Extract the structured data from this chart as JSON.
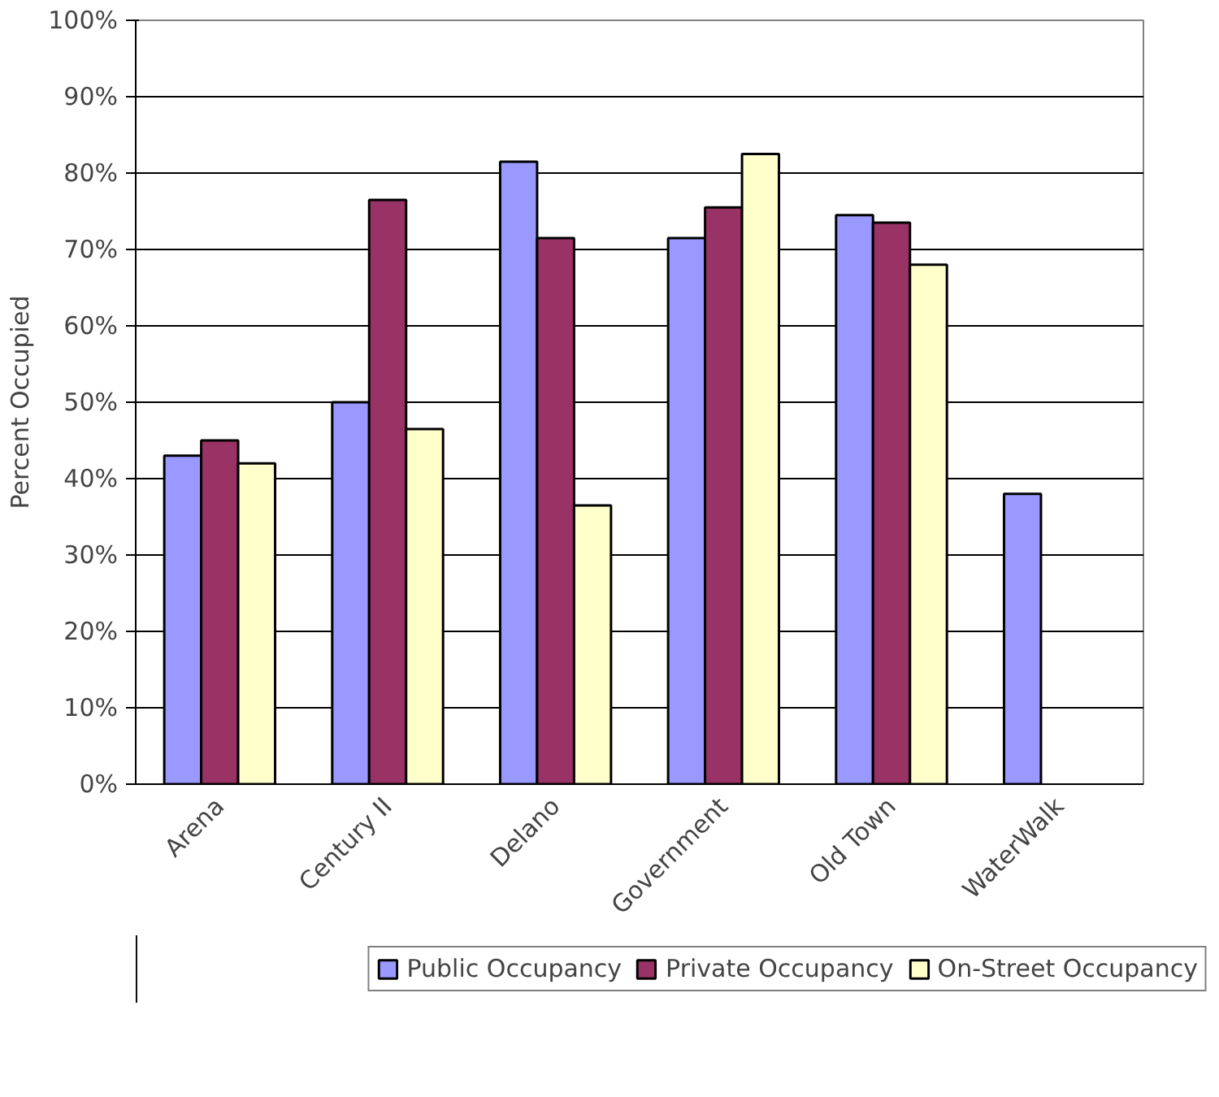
{
  "chart_data": {
    "type": "bar",
    "ylabel": "Percent Occupied",
    "categories": [
      "Arena",
      "Century II",
      "Delano",
      "Government",
      "Old Town",
      "WaterWalk"
    ],
    "series": [
      {
        "name": "Public Occupancy",
        "color": "#9999ff",
        "values": [
          43,
          50,
          81.5,
          71.5,
          74.5,
          38
        ]
      },
      {
        "name": "Private Occupancy",
        "color": "#993366",
        "values": [
          45,
          76.5,
          71.5,
          75.5,
          73.5,
          null
        ]
      },
      {
        "name": "On-Street Occupancy",
        "color": "#ffffcc",
        "values": [
          42,
          46.5,
          36.5,
          82.5,
          68,
          null
        ]
      }
    ],
    "ylim": [
      0,
      100
    ],
    "yticks": [
      {
        "value": 0,
        "label": "0%"
      },
      {
        "value": 10,
        "label": "10%"
      },
      {
        "value": 20,
        "label": "20%"
      },
      {
        "value": 30,
        "label": "30%"
      },
      {
        "value": 40,
        "label": "40%"
      },
      {
        "value": 50,
        "label": "50%"
      },
      {
        "value": 60,
        "label": "60%"
      },
      {
        "value": 70,
        "label": "70%"
      },
      {
        "value": 80,
        "label": "80%"
      },
      {
        "value": 90,
        "label": "90%"
      },
      {
        "value": 100,
        "label": "100%"
      }
    ],
    "grid": "y",
    "legend": "bottom"
  }
}
